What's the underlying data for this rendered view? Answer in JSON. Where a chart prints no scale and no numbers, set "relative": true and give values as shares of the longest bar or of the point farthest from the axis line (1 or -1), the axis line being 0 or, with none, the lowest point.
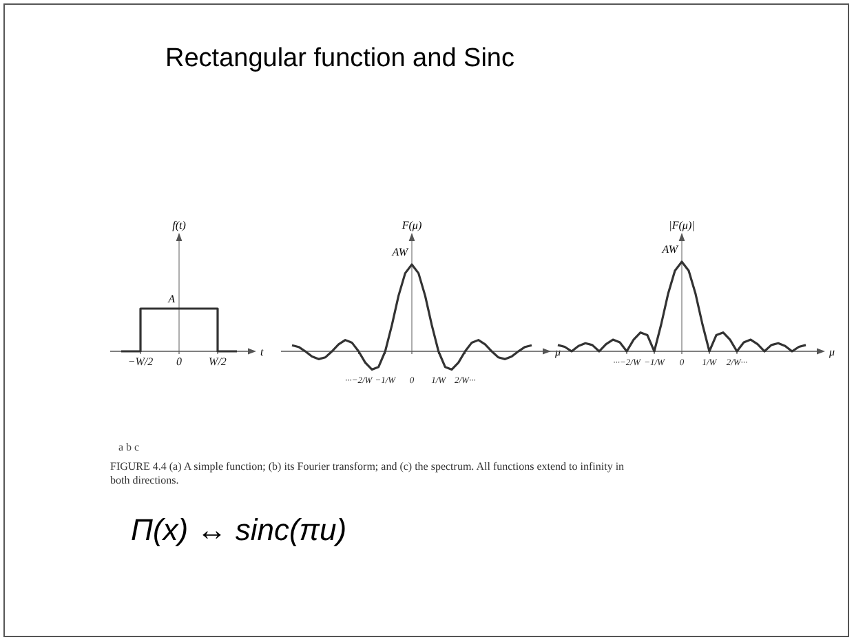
{
  "chart_data": [
    {
      "type": "other",
      "title": "Rectangular function and Sinc"
    },
    {
      "type": "step",
      "relative": true,
      "ylabel": "f(t)",
      "xlabel": "t",
      "annotations": [
        "A"
      ],
      "categories": [
        null,
        "−W/2",
        null,
        "0",
        null,
        "W/2",
        null
      ],
      "series": [
        {
          "color": "#333333",
          "values": [
            0,
            1,
            1,
            1,
            1,
            0,
            0
          ]
        }
      ]
    },
    {
      "type": "line",
      "relative": true,
      "ylabel": "F(μ)",
      "xlabel": "μ",
      "annotations": [
        "AW"
      ],
      "categories": [
        null,
        null,
        null,
        null,
        null,
        null,
        null,
        null,
        null,
        null,
        "···−2/W",
        null,
        null,
        null,
        "−1/W",
        null,
        null,
        null,
        "0",
        null,
        null,
        null,
        "1/W",
        null,
        null,
        null,
        "2/W···",
        null,
        null,
        null,
        null,
        null,
        null,
        null,
        null,
        null,
        null
      ],
      "series": [
        {
          "color": "#333333",
          "values": [
            0.07,
            0.05,
            0,
            -0.06,
            -0.09,
            -0.07,
            0,
            0.08,
            0.13,
            0.1,
            0,
            -0.13,
            -0.21,
            -0.18,
            0,
            0.3,
            0.64,
            0.9,
            1,
            0.9,
            0.64,
            0.3,
            0,
            -0.18,
            -0.21,
            -0.13,
            0,
            0.1,
            0.13,
            0.08,
            0,
            -0.07,
            -0.09,
            -0.06,
            0,
            0.05,
            0.07
          ]
        }
      ]
    },
    {
      "type": "line",
      "relative": true,
      "ylabel": "|F(μ)|",
      "xlabel": "μ",
      "annotations": [
        "AW"
      ],
      "categories": [
        null,
        null,
        null,
        null,
        null,
        null,
        null,
        null,
        null,
        null,
        "···−2/W",
        null,
        null,
        null,
        "−1/W",
        null,
        null,
        null,
        "0",
        null,
        null,
        null,
        "1/W",
        null,
        null,
        null,
        "2/W···",
        null,
        null,
        null,
        null,
        null,
        null,
        null,
        null,
        null,
        null
      ],
      "series": [
        {
          "color": "#333333",
          "values": [
            0.07,
            0.05,
            0,
            0.06,
            0.09,
            0.07,
            0,
            0.08,
            0.13,
            0.1,
            0,
            0.13,
            0.21,
            0.18,
            0,
            0.3,
            0.64,
            0.9,
            1,
            0.9,
            0.64,
            0.3,
            0,
            0.18,
            0.21,
            0.13,
            0,
            0.1,
            0.13,
            0.08,
            0,
            0.07,
            0.09,
            0.06,
            0,
            0.05,
            0.07
          ]
        }
      ]
    },
    {
      "type": "other",
      "annotations": [
        "a b c",
        "FIGURE 4.4 (a) A simple function; (b) its Fourier transform; and (c) the spectrum. All functions extend to infinity in both directions.",
        "Π(x) ↔ sinc(πu)"
      ]
    }
  ]
}
